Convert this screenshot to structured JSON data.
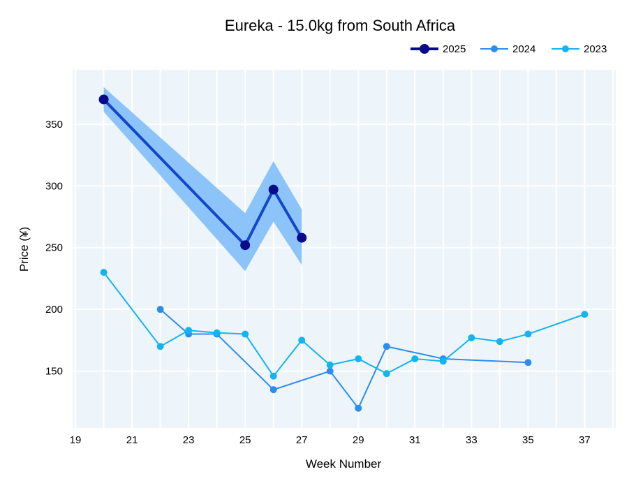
{
  "chart_data": {
    "type": "line",
    "title": "Eureka - 15.0kg from South Africa",
    "xlabel": "Week Number",
    "ylabel": "Price (¥)",
    "xlim": [
      18.9,
      38.1
    ],
    "ylim": [
      104,
      394
    ],
    "x_ticks": [
      "19",
      "21",
      "23",
      "25",
      "27",
      "29",
      "31",
      "33",
      "35",
      "37"
    ],
    "y_ticks": [
      "150",
      "200",
      "250",
      "300",
      "350"
    ],
    "grid": true,
    "legend_position": "top-right",
    "colors": {
      "plot_bg": "#eef5fa",
      "grid": "#ffffff",
      "band": "#8cc4fa"
    },
    "series": [
      {
        "name": "2025",
        "color": "#0a0a8c",
        "line_color": "#1446c8",
        "x": [
          20,
          25,
          26,
          27
        ],
        "y": [
          370,
          252,
          297,
          258
        ],
        "band_upper": [
          380,
          278,
          320,
          281
        ],
        "band_lower": [
          360,
          231,
          271,
          236
        ]
      },
      {
        "name": "2024",
        "color": "#2d8cf0",
        "x": [
          22,
          23,
          24,
          26,
          28,
          29,
          30,
          32,
          35
        ],
        "y": [
          200,
          180,
          180,
          135,
          150,
          120,
          170,
          160,
          157
        ]
      },
      {
        "name": "2023",
        "color": "#14b4f0",
        "x": [
          20,
          22,
          23,
          24,
          25,
          26,
          27,
          28,
          29,
          30,
          31,
          32,
          33,
          34,
          35,
          37
        ],
        "y": [
          230,
          170,
          183,
          181,
          180,
          146,
          175,
          155,
          160,
          148,
          160,
          158,
          177,
          174,
          180,
          196
        ]
      }
    ]
  }
}
